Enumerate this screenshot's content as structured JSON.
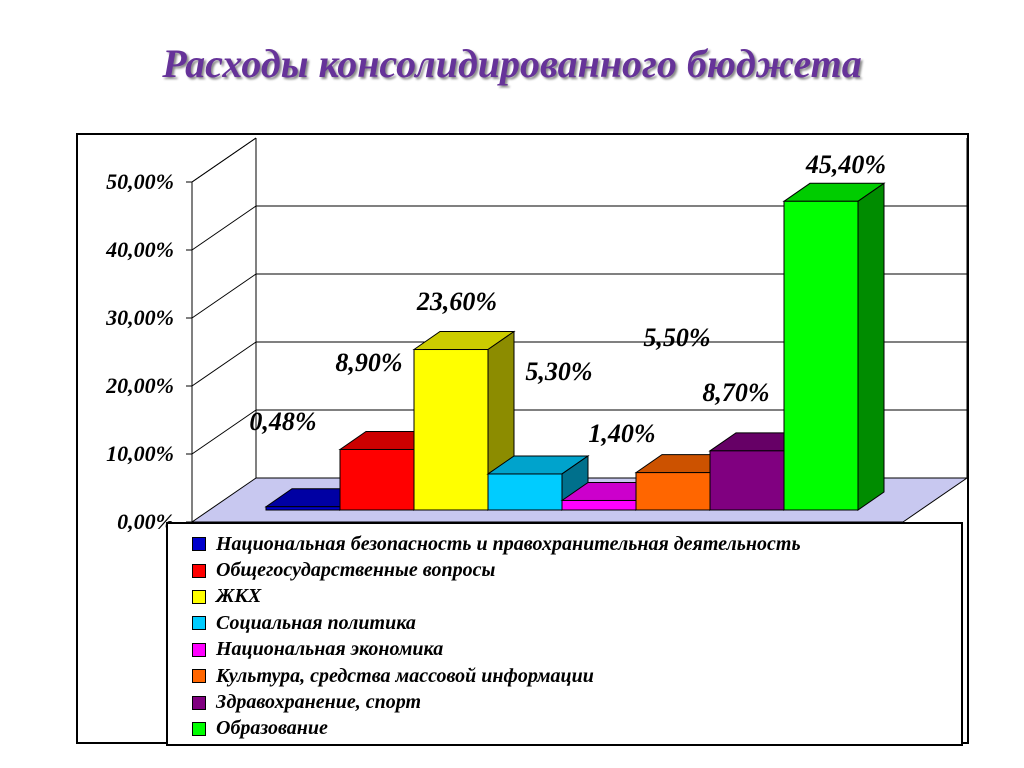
{
  "title": "Расходы консолидированного бюджета",
  "chart_data": {
    "type": "bar",
    "title": "Расходы консолидированного бюджета",
    "ylim": [
      0,
      50
    ],
    "y_ticks": [
      "0,00%",
      "10,00%",
      "20,00%",
      "30,00%",
      "40,00%",
      "50,00%"
    ],
    "grid": true,
    "legend_position": "bottom",
    "series": [
      {
        "name": "Национальная безопасность и правохранительная деятельность",
        "value": 0.48,
        "label": "0,48%",
        "color": "#0000cc"
      },
      {
        "name": "Общегосударственные вопросы",
        "value": 8.9,
        "label": "8,90%",
        "color": "#ff0000"
      },
      {
        "name": "ЖКХ",
        "value": 23.6,
        "label": "23,60%",
        "color": "#ffff00"
      },
      {
        "name": "Социальная политика",
        "value": 5.3,
        "label": "5,30%",
        "color": "#00ccff"
      },
      {
        "name": "Национальная экономика",
        "value": 1.4,
        "label": "1,40%",
        "color": "#ff00ff"
      },
      {
        "name": "Культура, средства массовой информации",
        "value": 5.5,
        "label": "5,50%",
        "color": "#ff6600"
      },
      {
        "name": "Здравохранение, спорт",
        "value": 8.7,
        "label": "8,70%",
        "color": "#800080"
      },
      {
        "name": "Образование",
        "value": 45.4,
        "label": "45,40%",
        "color": "#00ff00"
      }
    ]
  }
}
